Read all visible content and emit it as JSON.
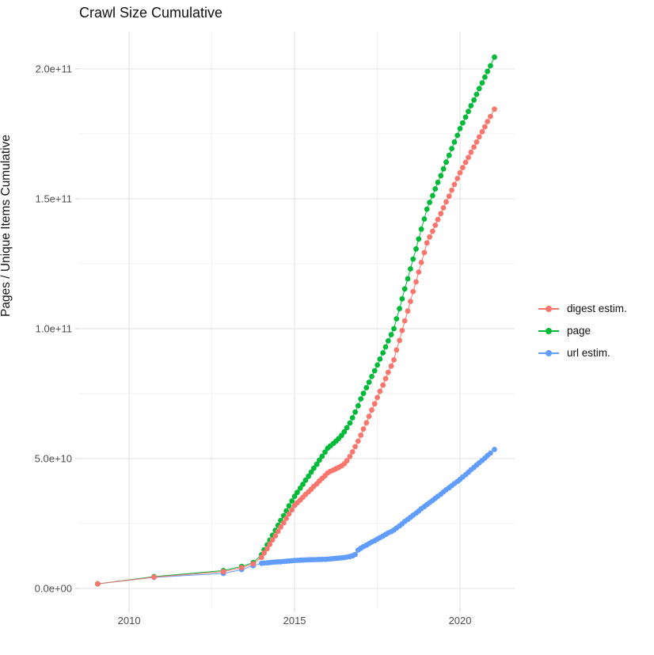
{
  "chart_data": {
    "type": "scatter-line",
    "title": "Crawl Size Cumulative",
    "xlabel": "",
    "ylabel": "Pages / Unique Items Cumulative",
    "legend_position": "right",
    "grid": true,
    "xlim": [
      2008.49,
      2021.65
    ],
    "ylim_e9": [
      -7.6,
      214.3
    ],
    "x_ticks": {
      "years": [
        2010,
        2015,
        2020
      ],
      "labels": [
        "2010",
        "2015",
        "2020"
      ]
    },
    "x_minor_years": [
      2012.5,
      2017.5
    ],
    "y_ticks": {
      "values_e9": [
        0,
        50,
        100,
        150,
        200
      ],
      "labels": [
        "0.0e+00",
        "5.0e+10",
        "1.0e+11",
        "1.5e+11",
        "2.0e+11"
      ]
    },
    "y_minor_e9": [
      25,
      75,
      125,
      175
    ],
    "colors": {
      "major_grid": "#e5e5e5",
      "minor_grid": "#f2f2f2",
      "tick_mark": "#d9d9d9",
      "tick_label": "#4d4d4d"
    },
    "series": [
      {
        "name": "url estim.",
        "color": "#619CFF",
        "points": [
          [
            2009.05,
            1.8
          ],
          [
            2010.75,
            4.3
          ],
          [
            2012.85,
            5.8
          ],
          [
            2013.4,
            7.3
          ],
          [
            2013.75,
            8.8
          ],
          [
            2014.0,
            9.7
          ],
          [
            2014.08,
            9.8
          ],
          [
            2014.17,
            9.9
          ],
          [
            2014.25,
            10.0
          ],
          [
            2014.33,
            10.1
          ],
          [
            2014.42,
            10.2
          ],
          [
            2014.5,
            10.25
          ],
          [
            2014.58,
            10.3
          ],
          [
            2014.67,
            10.4
          ],
          [
            2014.75,
            10.5
          ],
          [
            2014.83,
            10.6
          ],
          [
            2014.92,
            10.7
          ],
          [
            2015.0,
            10.8
          ],
          [
            2015.08,
            10.85
          ],
          [
            2015.17,
            10.9
          ],
          [
            2015.25,
            10.95
          ],
          [
            2015.33,
            11.0
          ],
          [
            2015.42,
            11.05
          ],
          [
            2015.5,
            11.1
          ],
          [
            2015.58,
            11.1
          ],
          [
            2015.67,
            11.15
          ],
          [
            2015.75,
            11.2
          ],
          [
            2015.83,
            11.2
          ],
          [
            2015.92,
            11.25
          ],
          [
            2016.0,
            11.3
          ],
          [
            2016.08,
            11.4
          ],
          [
            2016.17,
            11.5
          ],
          [
            2016.25,
            11.6
          ],
          [
            2016.33,
            11.7
          ],
          [
            2016.42,
            11.8
          ],
          [
            2016.5,
            11.9
          ],
          [
            2016.58,
            12.1
          ],
          [
            2016.67,
            12.3
          ],
          [
            2016.75,
            12.6
          ],
          [
            2016.83,
            13.1
          ],
          [
            2016.92,
            14.8
          ],
          [
            2017.0,
            15.5
          ],
          [
            2017.08,
            16.1
          ],
          [
            2017.17,
            16.7
          ],
          [
            2017.25,
            17.3
          ],
          [
            2017.33,
            17.9
          ],
          [
            2017.42,
            18.4
          ],
          [
            2017.5,
            19.0
          ],
          [
            2017.58,
            19.6
          ],
          [
            2017.67,
            20.2
          ],
          [
            2017.75,
            20.8
          ],
          [
            2017.83,
            21.4
          ],
          [
            2017.92,
            21.9
          ],
          [
            2018.0,
            22.5
          ],
          [
            2018.08,
            23.3
          ],
          [
            2018.17,
            24.1
          ],
          [
            2018.25,
            24.9
          ],
          [
            2018.33,
            25.8
          ],
          [
            2018.42,
            26.6
          ],
          [
            2018.5,
            27.4
          ],
          [
            2018.58,
            28.2
          ],
          [
            2018.67,
            29.0
          ],
          [
            2018.75,
            29.8
          ],
          [
            2018.83,
            30.7
          ],
          [
            2018.92,
            31.5
          ],
          [
            2019.0,
            32.3
          ],
          [
            2019.08,
            33.1
          ],
          [
            2019.17,
            33.9
          ],
          [
            2019.25,
            34.7
          ],
          [
            2019.33,
            35.5
          ],
          [
            2019.42,
            36.3
          ],
          [
            2019.5,
            37.2
          ],
          [
            2019.58,
            38.0
          ],
          [
            2019.67,
            38.8
          ],
          [
            2019.75,
            39.6
          ],
          [
            2019.83,
            40.4
          ],
          [
            2019.92,
            41.2
          ],
          [
            2020.0,
            42.0
          ],
          [
            2020.08,
            42.9
          ],
          [
            2020.17,
            43.8
          ],
          [
            2020.25,
            44.7
          ],
          [
            2020.33,
            45.7
          ],
          [
            2020.42,
            46.6
          ],
          [
            2020.5,
            47.5
          ],
          [
            2020.58,
            48.4
          ],
          [
            2020.67,
            49.3
          ],
          [
            2020.75,
            50.2
          ],
          [
            2020.83,
            51.2
          ],
          [
            2020.92,
            52.1
          ],
          [
            2021.04,
            53.5
          ]
        ]
      },
      {
        "name": "page",
        "color": "#00BA38",
        "points": [
          [
            2009.05,
            1.8
          ],
          [
            2010.75,
            4.6
          ],
          [
            2012.85,
            6.9
          ],
          [
            2013.4,
            8.5
          ],
          [
            2013.75,
            10.0
          ],
          [
            2014.0,
            13.0
          ],
          [
            2014.08,
            14.9
          ],
          [
            2014.17,
            16.8
          ],
          [
            2014.25,
            18.6
          ],
          [
            2014.33,
            20.5
          ],
          [
            2014.42,
            22.4
          ],
          [
            2014.5,
            24.3
          ],
          [
            2014.58,
            26.2
          ],
          [
            2014.67,
            28.0
          ],
          [
            2014.75,
            29.9
          ],
          [
            2014.83,
            31.8
          ],
          [
            2014.92,
            33.7
          ],
          [
            2015.0,
            35.5
          ],
          [
            2015.08,
            37.0
          ],
          [
            2015.17,
            38.6
          ],
          [
            2015.25,
            40.1
          ],
          [
            2015.33,
            41.7
          ],
          [
            2015.42,
            43.2
          ],
          [
            2015.5,
            44.8
          ],
          [
            2015.58,
            46.3
          ],
          [
            2015.67,
            47.8
          ],
          [
            2015.75,
            49.4
          ],
          [
            2015.83,
            50.9
          ],
          [
            2015.92,
            52.5
          ],
          [
            2016.0,
            54.0
          ],
          [
            2016.08,
            54.9
          ],
          [
            2016.17,
            55.8
          ],
          [
            2016.25,
            56.7
          ],
          [
            2016.33,
            57.7
          ],
          [
            2016.42,
            58.9
          ],
          [
            2016.5,
            60.3
          ],
          [
            2016.58,
            61.9
          ],
          [
            2016.67,
            63.7
          ],
          [
            2016.75,
            65.7
          ],
          [
            2016.83,
            67.9
          ],
          [
            2016.92,
            70.3
          ],
          [
            2017.0,
            73.0
          ],
          [
            2017.08,
            75.1
          ],
          [
            2017.17,
            77.3
          ],
          [
            2017.25,
            79.4
          ],
          [
            2017.33,
            81.6
          ],
          [
            2017.42,
            83.8
          ],
          [
            2017.5,
            86.0
          ],
          [
            2017.58,
            88.3
          ],
          [
            2017.67,
            90.7
          ],
          [
            2017.75,
            93.0
          ],
          [
            2017.83,
            95.3
          ],
          [
            2017.92,
            97.7
          ],
          [
            2018.0,
            100.0
          ],
          [
            2018.08,
            103.8
          ],
          [
            2018.17,
            107.7
          ],
          [
            2018.25,
            111.5
          ],
          [
            2018.33,
            115.3
          ],
          [
            2018.42,
            119.2
          ],
          [
            2018.5,
            123.0
          ],
          [
            2018.58,
            126.8
          ],
          [
            2018.67,
            130.7
          ],
          [
            2018.75,
            134.5
          ],
          [
            2018.83,
            138.3
          ],
          [
            2018.92,
            142.2
          ],
          [
            2019.0,
            146.0
          ],
          [
            2019.08,
            148.6
          ],
          [
            2019.17,
            151.2
          ],
          [
            2019.25,
            153.8
          ],
          [
            2019.33,
            156.3
          ],
          [
            2019.42,
            158.9
          ],
          [
            2019.5,
            161.5
          ],
          [
            2019.58,
            164.1
          ],
          [
            2019.67,
            166.7
          ],
          [
            2019.75,
            169.3
          ],
          [
            2019.83,
            171.8
          ],
          [
            2019.92,
            174.4
          ],
          [
            2020.0,
            177.0
          ],
          [
            2020.08,
            179.2
          ],
          [
            2020.17,
            181.4
          ],
          [
            2020.25,
            183.6
          ],
          [
            2020.33,
            185.8
          ],
          [
            2020.42,
            188.0
          ],
          [
            2020.5,
            190.2
          ],
          [
            2020.58,
            192.4
          ],
          [
            2020.67,
            194.6
          ],
          [
            2020.75,
            196.8
          ],
          [
            2020.83,
            199.0
          ],
          [
            2020.92,
            201.2
          ],
          [
            2021.04,
            204.5
          ]
        ]
      },
      {
        "name": "digest estim.",
        "color": "#F8766D",
        "points": [
          [
            2009.05,
            1.8
          ],
          [
            2010.75,
            4.4
          ],
          [
            2012.85,
            6.5
          ],
          [
            2013.4,
            8.0
          ],
          [
            2013.75,
            9.5
          ],
          [
            2014.0,
            12.0
          ],
          [
            2014.08,
            13.7
          ],
          [
            2014.17,
            15.3
          ],
          [
            2014.25,
            17.0
          ],
          [
            2014.33,
            18.7
          ],
          [
            2014.42,
            20.3
          ],
          [
            2014.5,
            22.0
          ],
          [
            2014.58,
            23.7
          ],
          [
            2014.67,
            25.3
          ],
          [
            2014.75,
            27.0
          ],
          [
            2014.83,
            28.7
          ],
          [
            2014.92,
            30.3
          ],
          [
            2015.0,
            32.0
          ],
          [
            2015.08,
            33.0
          ],
          [
            2015.17,
            34.1
          ],
          [
            2015.25,
            35.1
          ],
          [
            2015.33,
            36.2
          ],
          [
            2015.42,
            37.2
          ],
          [
            2015.5,
            38.2
          ],
          [
            2015.58,
            39.3
          ],
          [
            2015.67,
            40.3
          ],
          [
            2015.75,
            41.4
          ],
          [
            2015.83,
            42.4
          ],
          [
            2015.92,
            43.4
          ],
          [
            2016.0,
            44.5
          ],
          [
            2016.08,
            45.1
          ],
          [
            2016.17,
            45.6
          ],
          [
            2016.25,
            46.1
          ],
          [
            2016.33,
            46.6
          ],
          [
            2016.42,
            47.2
          ],
          [
            2016.5,
            48.0
          ],
          [
            2016.58,
            49.2
          ],
          [
            2016.67,
            50.8
          ],
          [
            2016.75,
            52.6
          ],
          [
            2016.83,
            54.6
          ],
          [
            2016.92,
            56.7
          ],
          [
            2017.0,
            59.0
          ],
          [
            2017.08,
            61.4
          ],
          [
            2017.17,
            63.8
          ],
          [
            2017.25,
            66.3
          ],
          [
            2017.33,
            68.7
          ],
          [
            2017.42,
            71.1
          ],
          [
            2017.5,
            73.5
          ],
          [
            2017.58,
            75.9
          ],
          [
            2017.67,
            78.3
          ],
          [
            2017.75,
            80.8
          ],
          [
            2017.83,
            83.2
          ],
          [
            2017.92,
            85.6
          ],
          [
            2018.0,
            88.0
          ],
          [
            2018.08,
            91.8
          ],
          [
            2018.17,
            95.5
          ],
          [
            2018.25,
            99.3
          ],
          [
            2018.33,
            103.0
          ],
          [
            2018.42,
            106.8
          ],
          [
            2018.5,
            110.5
          ],
          [
            2018.58,
            114.3
          ],
          [
            2018.67,
            118.0
          ],
          [
            2018.75,
            121.8
          ],
          [
            2018.83,
            125.5
          ],
          [
            2018.92,
            129.3
          ],
          [
            2019.0,
            133.0
          ],
          [
            2019.08,
            135.3
          ],
          [
            2019.17,
            137.5
          ],
          [
            2019.25,
            139.8
          ],
          [
            2019.33,
            142.0
          ],
          [
            2019.42,
            144.3
          ],
          [
            2019.5,
            146.5
          ],
          [
            2019.58,
            148.8
          ],
          [
            2019.67,
            151.0
          ],
          [
            2019.75,
            153.3
          ],
          [
            2019.83,
            155.5
          ],
          [
            2019.92,
            157.8
          ],
          [
            2020.0,
            160.0
          ],
          [
            2020.08,
            162.0
          ],
          [
            2020.17,
            164.0
          ],
          [
            2020.25,
            165.9
          ],
          [
            2020.33,
            167.9
          ],
          [
            2020.42,
            169.9
          ],
          [
            2020.5,
            171.8
          ],
          [
            2020.58,
            173.8
          ],
          [
            2020.67,
            175.8
          ],
          [
            2020.75,
            177.7
          ],
          [
            2020.83,
            179.7
          ],
          [
            2020.92,
            181.7
          ],
          [
            2021.04,
            184.5
          ]
        ]
      }
    ],
    "legend_order": [
      "digest estim.",
      "page",
      "url estim."
    ]
  }
}
